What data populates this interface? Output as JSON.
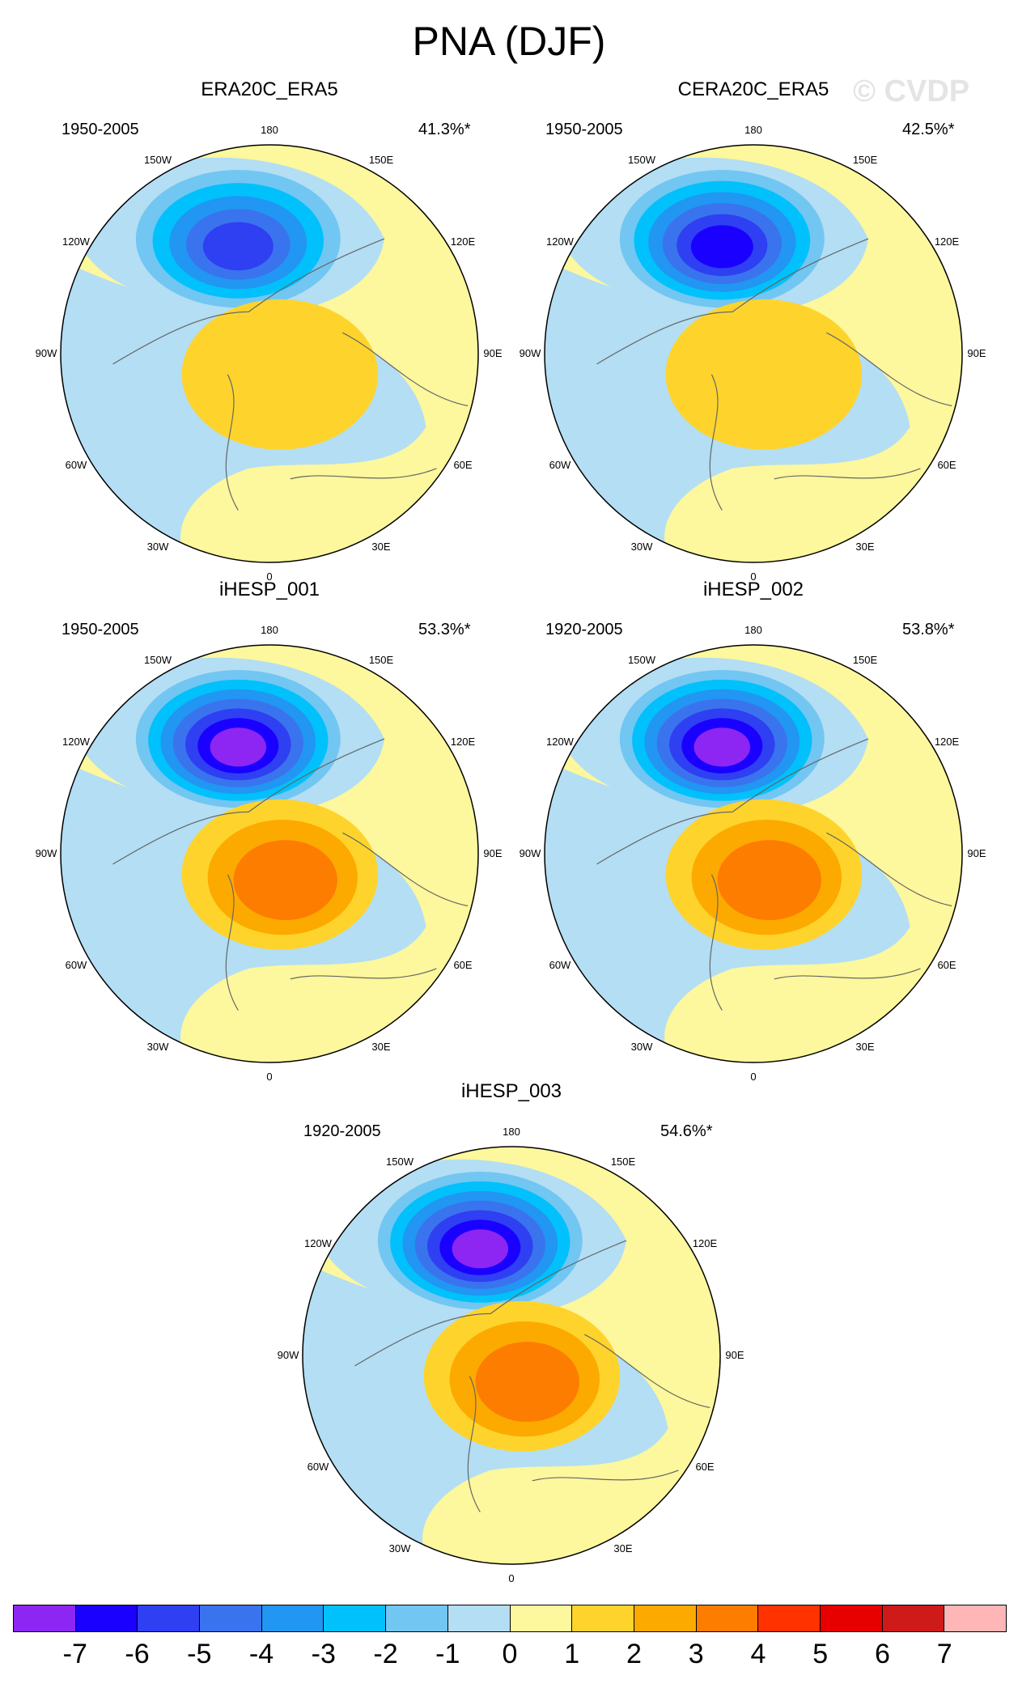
{
  "title": "PNA (DJF)",
  "watermark": "© CVDP",
  "colors": [
    "#8d26f2",
    "#1a00ff",
    "#2f3ff2",
    "#3a73ee",
    "#2196f3",
    "#00c1fb",
    "#72c6f2",
    "#b3def4",
    "#fdf79d",
    "#fed42c",
    "#fdaa00",
    "#fd7d00",
    "#ff3200",
    "#e60000",
    "#cf1a1a",
    "#feb6b6"
  ],
  "legend": {
    "tick_labels": [
      "-7",
      "-6",
      "-5",
      "-4",
      "-3",
      "-2",
      "-1",
      "0",
      "1",
      "2",
      "3",
      "4",
      "5",
      "6",
      "7"
    ]
  },
  "longitude_labels": [
    "180",
    "150E",
    "120E",
    "90E",
    "60E",
    "30E",
    "0",
    "30W",
    "60W",
    "90W",
    "120W",
    "150W"
  ],
  "panels": [
    {
      "title": "ERA20C_ERA5",
      "years": "1950-2005",
      "pct": "41.3%*",
      "neg_level": 5,
      "pos_level": 1
    },
    {
      "title": "CERA20C_ERA5",
      "years": "1950-2005",
      "pct": "42.5%*",
      "neg_level": 6,
      "pos_level": 1
    },
    {
      "title": "iHESP_001",
      "years": "1950-2005",
      "pct": "53.3%*",
      "neg_level": 7,
      "pos_level": 3
    },
    {
      "title": "iHESP_002",
      "years": "1920-2005",
      "pct": "53.8%*",
      "neg_level": 7,
      "pos_level": 3
    },
    {
      "title": "iHESP_003",
      "years": "1920-2005",
      "pct": "54.6%*",
      "neg_level": 7,
      "pos_level": 3
    }
  ]
}
